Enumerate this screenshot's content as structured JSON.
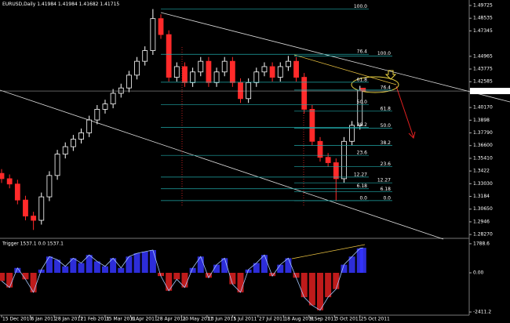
{
  "chart_data": [
    {
      "type": "candlestick",
      "symbol": "EURUSD,Daily",
      "x": [
        0,
        5,
        10,
        15,
        20,
        25,
        30,
        35,
        40,
        45,
        50,
        55,
        60,
        65,
        70,
        75,
        80,
        85,
        90,
        95,
        100,
        105,
        110,
        115,
        120,
        125,
        130,
        135,
        140,
        145,
        150,
        155,
        160,
        165,
        170,
        175,
        180,
        185,
        190,
        195,
        200,
        205,
        210,
        215,
        220,
        225,
        227
      ],
      "open": [
        1.34,
        1.335,
        1.33,
        1.315,
        1.3,
        1.296,
        1.318,
        1.338,
        1.358,
        1.365,
        1.372,
        1.378,
        1.39,
        1.4,
        1.405,
        1.415,
        1.42,
        1.432,
        1.445,
        1.455,
        1.485,
        1.47,
        1.43,
        1.44,
        1.425,
        1.435,
        1.445,
        1.425,
        1.435,
        1.445,
        1.425,
        1.41,
        1.425,
        1.435,
        1.44,
        1.43,
        1.44,
        1.445,
        1.43,
        1.4,
        1.37,
        1.355,
        1.35,
        1.335,
        1.37,
        1.385,
        1.41984
      ],
      "high": [
        1.344,
        1.339,
        1.334,
        1.319,
        1.304,
        1.322,
        1.342,
        1.362,
        1.369,
        1.376,
        1.382,
        1.394,
        1.404,
        1.409,
        1.419,
        1.424,
        1.436,
        1.449,
        1.459,
        1.4939,
        1.489,
        1.474,
        1.444,
        1.444,
        1.439,
        1.449,
        1.449,
        1.439,
        1.449,
        1.449,
        1.429,
        1.429,
        1.439,
        1.444,
        1.444,
        1.444,
        1.45,
        1.449,
        1.434,
        1.404,
        1.374,
        1.359,
        1.354,
        1.374,
        1.389,
        1.422,
        1.41984
      ],
      "low": [
        1.331,
        1.326,
        1.311,
        1.296,
        1.287,
        1.292,
        1.314,
        1.334,
        1.354,
        1.361,
        1.368,
        1.374,
        1.386,
        1.396,
        1.401,
        1.411,
        1.416,
        1.428,
        1.441,
        1.451,
        1.466,
        1.426,
        1.426,
        1.421,
        1.421,
        1.431,
        1.421,
        1.421,
        1.431,
        1.421,
        1.406,
        1.406,
        1.421,
        1.431,
        1.426,
        1.426,
        1.436,
        1.426,
        1.396,
        1.366,
        1.351,
        1.346,
        1.3145,
        1.331,
        1.366,
        1.381,
        1.41682
      ],
      "close": [
        1.335,
        1.33,
        1.315,
        1.3,
        1.296,
        1.318,
        1.338,
        1.358,
        1.365,
        1.372,
        1.378,
        1.39,
        1.4,
        1.405,
        1.415,
        1.42,
        1.432,
        1.445,
        1.455,
        1.485,
        1.47,
        1.43,
        1.44,
        1.425,
        1.435,
        1.445,
        1.425,
        1.435,
        1.445,
        1.425,
        1.41,
        1.425,
        1.435,
        1.44,
        1.43,
        1.44,
        1.445,
        1.43,
        1.4,
        1.37,
        1.355,
        1.35,
        1.335,
        1.37,
        1.385,
        1.418,
        1.41715
      ],
      "up_color": "#ffffff",
      "down_color": "#ff2a2a",
      "fib_color": "#20a8a8",
      "xlim": [
        -1,
        293.6
      ],
      "ylim": [
        1.2806,
        1.5024
      ],
      "xticks": [
        {
          "value": 0,
          "label": "15 Dec 2010"
        },
        {
          "value": 18,
          "label": "6 Jan 2011"
        },
        {
          "value": 33,
          "label": "28 Jan 2011"
        },
        {
          "value": 49,
          "label": "21 Feb 2011"
        },
        {
          "value": 65,
          "label": "15 Mar 2011"
        },
        {
          "value": 81,
          "label": "6 Apr 2011"
        },
        {
          "value": 97,
          "label": "28 Apr 2011"
        },
        {
          "value": 113,
          "label": "20 May 2011"
        },
        {
          "value": 129,
          "label": "13 Jun 2011"
        },
        {
          "value": 145,
          "label": "5 Jul 2011"
        },
        {
          "value": 161,
          "label": "27 Jul 2011"
        },
        {
          "value": 177,
          "label": "18 Aug 2011"
        },
        {
          "value": 193,
          "label": "9 Sep 2011"
        },
        {
          "value": 209,
          "label": "3 Oct 2011"
        },
        {
          "value": 225,
          "label": "25 Oct 2011"
        }
      ],
      "yticks": [
        1.49725,
        1.48535,
        1.47345,
        1.44965,
        1.43775,
        1.42585,
        {
          "value": 1.4017,
          "label": "1.40170"
        },
        1.3898,
        {
          "value": 1.3779,
          "label": "1.37790"
        },
        {
          "value": 1.366,
          "label": "1.36600"
        },
        {
          "value": 1.3541,
          "label": "1.35410"
        },
        1.3422,
        {
          "value": 1.3303,
          "label": "1.33030"
        },
        1.3184,
        {
          "value": 1.3065,
          "label": "1.30650"
        },
        1.2946,
        {
          "value": 1.2827,
          "label": "1.28270"
        }
      ],
      "fibs": [
        {
          "high": 1.4939,
          "low": 1.3145,
          "levels": [
            {
              "value": 100,
              "label": "100.0"
            },
            76.4,
            61.8,
            {
              "value": 50,
              "label": "50.0"
            },
            38.2,
            23.6,
            12.27,
            6.18,
            {
              "value": 0,
              "label": "0.0"
            }
          ]
        },
        {
          "high": 1.45,
          "low": 1.3145,
          "levels": [
            {
              "value": 100,
              "label": "100.0"
            },
            76.4,
            61.8,
            {
              "value": 50,
              "label": "50.0"
            },
            38.2,
            23.6,
            12.27,
            6.18,
            {
              "value": 0,
              "label": "0.0"
            }
          ]
        }
      ]
    },
    {
      "type": "histogram",
      "title": "Trigger 1537.1 0.0 1537.1",
      "values": [
        -500,
        -900,
        300,
        -400,
        -1200,
        200,
        1000,
        800,
        400,
        900,
        600,
        1100,
        700,
        400,
        900,
        300,
        1000,
        1200,
        1300,
        1400,
        -200,
        -1100,
        -400,
        -900,
        300,
        1000,
        -300,
        500,
        900,
        -700,
        -1200,
        200,
        600,
        1100,
        -200,
        500,
        900,
        -300,
        -1500,
        -2000,
        -2300,
        -1500,
        -1000,
        500,
        1000,
        1500,
        1537.1
      ],
      "positive_color": "#3535ff",
      "negative_color": "#e02020",
      "line_color": "#a8c8ff",
      "ylim": [
        -2604,
        2025
      ],
      "yticks": [
        1788.6,
        {
          "value": 0,
          "label": "0.00"
        },
        -2411.2
      ]
    }
  ]
}
